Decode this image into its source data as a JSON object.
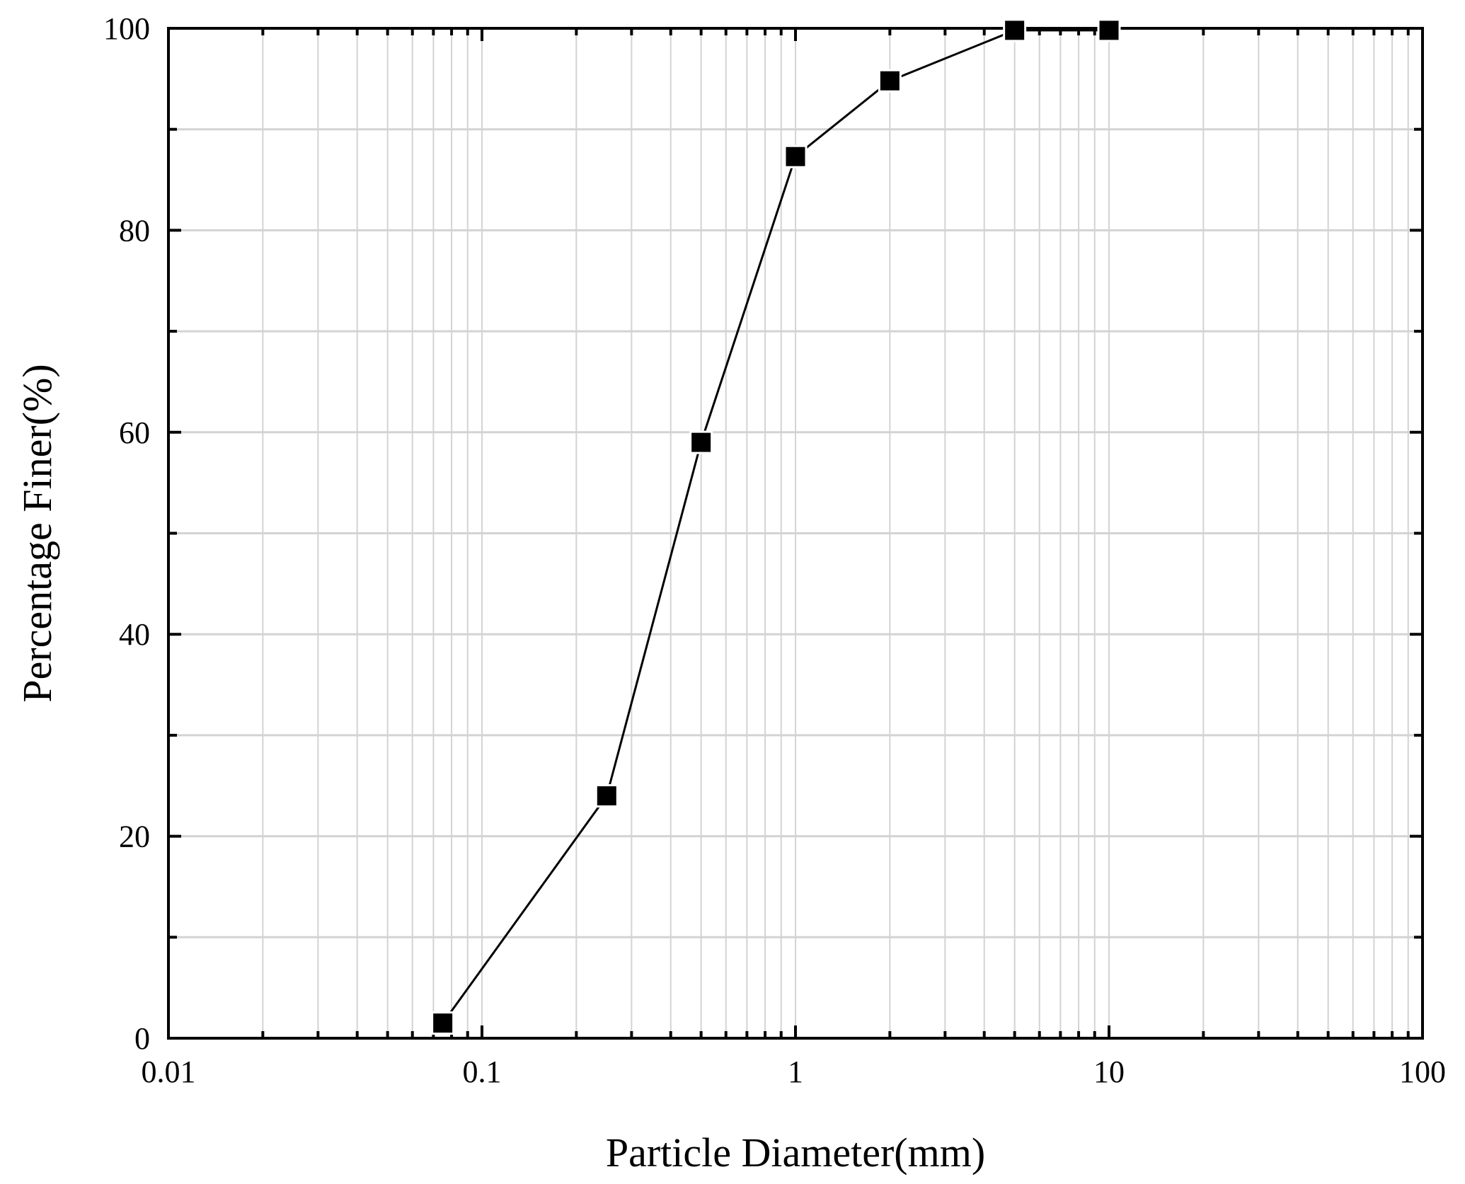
{
  "chart_data": {
    "type": "line",
    "xlabel": "Particle Diameter(mm)",
    "ylabel": "Percentage Finer(%)",
    "x_scale": "log",
    "xlim": [
      0.01,
      100
    ],
    "ylim": [
      0,
      100
    ],
    "x_tick_labels": [
      "0.01",
      "0.1",
      "1",
      "10",
      "100"
    ],
    "x_tick_values": [
      0.01,
      0.1,
      1,
      10,
      100
    ],
    "y_tick_labels": [
      "0",
      "20",
      "40",
      "60",
      "80",
      "100"
    ],
    "y_tick_values": [
      0,
      20,
      40,
      60,
      80,
      100
    ],
    "grid": true,
    "marker": "square",
    "series": [
      {
        "x": [
          0.075,
          0.25,
          0.5,
          1,
          2,
          5,
          10
        ],
        "y": [
          1.5,
          24,
          59,
          87.3,
          94.8,
          99.8,
          99.8
        ]
      }
    ],
    "colors": {
      "line": "#000000",
      "marker": "#000000",
      "grid": "#d3d3d3",
      "frame": "#000000"
    }
  }
}
